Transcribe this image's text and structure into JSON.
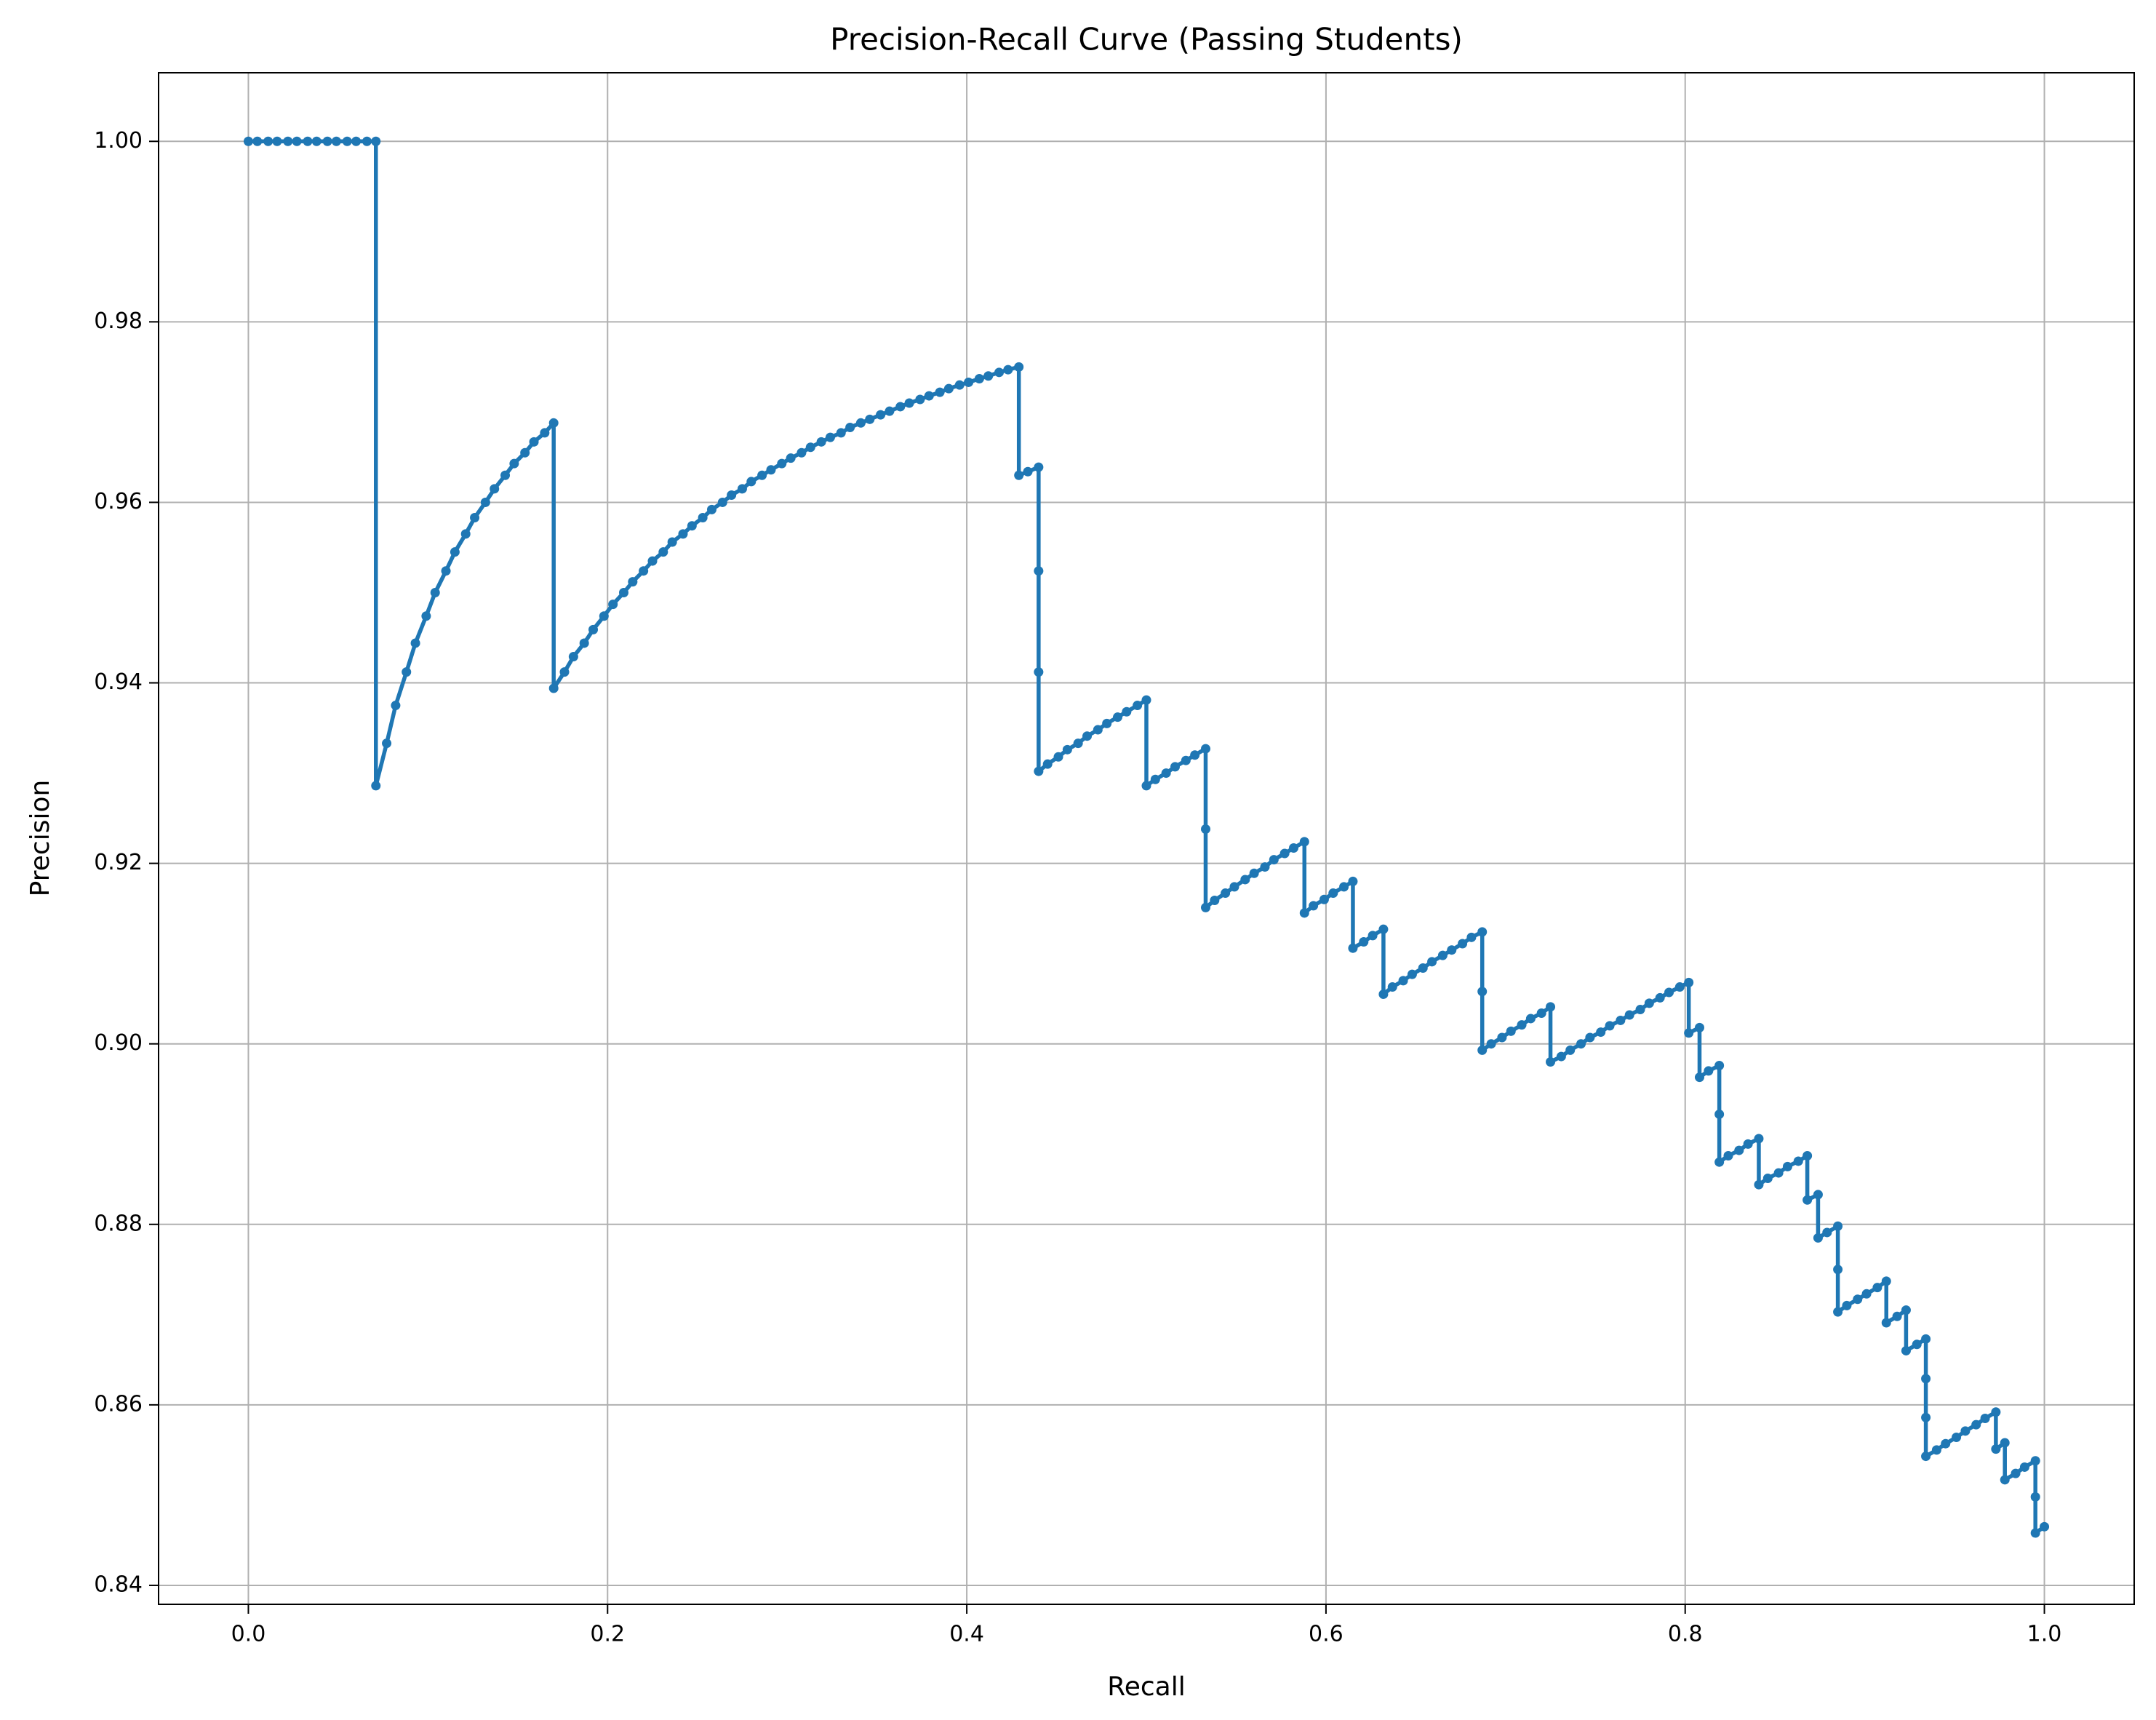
{
  "chart_data": {
    "type": "line",
    "title": "Precision-Recall Curve (Passing Students)",
    "x_label": "Recall",
    "y_label": "Precision",
    "color": "#1f77b4",
    "grid": true,
    "markers": true,
    "xlim": [
      -0.05,
      1.05
    ],
    "ylim": [
      0.8379,
      1.0076
    ],
    "xticks": [
      {
        "value": 0,
        "label": "0.0"
      },
      0.2,
      0.4,
      0.6,
      0.8,
      {
        "value": 1,
        "label": "1.0"
      }
    ],
    "yticks": [
      0.84,
      0.86,
      0.88,
      {
        "value": 0.9,
        "label": "0.90"
      },
      0.92,
      0.94,
      0.96,
      0.98,
      {
        "value": 1,
        "label": "1.00"
      }
    ],
    "x": [
      0,
      0.005,
      0.011,
      0.016,
      0.022,
      0.027,
      0.033,
      0.038,
      0.044,
      0.049,
      0.055,
      0.06,
      0.066,
      0.071,
      0.071,
      0.077,
      0.082,
      0.088,
      0.093,
      0.099,
      0.104,
      0.11,
      0.115,
      0.121,
      0.126,
      0.132,
      0.137,
      0.143,
      0.148,
      0.154,
      0.159,
      0.165,
      0.17,
      0.17,
      0.176,
      0.181,
      0.187,
      0.192,
      0.198,
      0.203,
      0.209,
      0.214,
      0.22,
      0.225,
      0.231,
      0.236,
      0.242,
      0.247,
      0.253,
      0.258,
      0.264,
      0.269,
      0.275,
      0.28,
      0.286,
      0.291,
      0.297,
      0.302,
      0.308,
      0.313,
      0.319,
      0.324,
      0.33,
      0.335,
      0.341,
      0.346,
      0.352,
      0.357,
      0.363,
      0.368,
      0.374,
      0.379,
      0.385,
      0.39,
      0.396,
      0.401,
      0.407,
      0.412,
      0.418,
      0.423,
      0.429,
      0.429,
      0.434,
      0.44,
      0.44,
      0.44,
      0.44,
      0.445,
      0.451,
      0.456,
      0.462,
      0.467,
      0.473,
      0.478,
      0.484,
      0.489,
      0.495,
      0.5,
      0.5,
      0.505,
      0.511,
      0.516,
      0.522,
      0.527,
      0.533,
      0.533,
      0.533,
      0.538,
      0.544,
      0.549,
      0.555,
      0.56,
      0.566,
      0.571,
      0.577,
      0.582,
      0.588,
      0.588,
      0.593,
      0.599,
      0.604,
      0.61,
      0.615,
      0.615,
      0.621,
      0.626,
      0.632,
      0.632,
      0.637,
      0.643,
      0.648,
      0.654,
      0.659,
      0.665,
      0.67,
      0.676,
      0.681,
      0.687,
      0.687,
      0.687,
      0.692,
      0.698,
      0.703,
      0.709,
      0.714,
      0.72,
      0.725,
      0.725,
      0.731,
      0.736,
      0.742,
      0.747,
      0.753,
      0.758,
      0.764,
      0.769,
      0.775,
      0.78,
      0.786,
      0.791,
      0.797,
      0.802,
      0.802,
      0.808,
      0.808,
      0.813,
      0.819,
      0.819,
      0.819,
      0.824,
      0.83,
      0.835,
      0.841,
      0.841,
      0.846,
      0.852,
      0.857,
      0.863,
      0.868,
      0.868,
      0.874,
      0.874,
      0.879,
      0.885,
      0.885,
      0.885,
      0.89,
      0.896,
      0.901,
      0.907,
      0.912,
      0.912,
      0.918,
      0.923,
      0.923,
      0.929,
      0.934,
      0.934,
      0.934,
      0.934,
      0.94,
      0.945,
      0.951,
      0.956,
      0.962,
      0.967,
      0.973,
      0.973,
      0.978,
      0.978,
      0.984,
      0.989,
      0.995,
      0.995,
      0.995,
      1
    ],
    "values": [
      1,
      1,
      1,
      1,
      1,
      1,
      1,
      1,
      1,
      1,
      1,
      1,
      1,
      1,
      0.9286,
      0.9333,
      0.9375,
      0.9412,
      0.9444,
      0.9474,
      0.95,
      0.9524,
      0.9545,
      0.9565,
      0.9583,
      0.96,
      0.9615,
      0.963,
      0.9643,
      0.9655,
      0.9667,
      0.9677,
      0.9688,
      0.9394,
      0.9412,
      0.9429,
      0.9444,
      0.9459,
      0.9474,
      0.9487,
      0.95,
      0.9512,
      0.9524,
      0.9535,
      0.9545,
      0.9556,
      0.9565,
      0.9574,
      0.9583,
      0.9592,
      0.96,
      0.9608,
      0.9615,
      0.9623,
      0.963,
      0.9636,
      0.9643,
      0.9649,
      0.9655,
      0.9661,
      0.9667,
      0.9672,
      0.9677,
      0.9683,
      0.9688,
      0.9692,
      0.9697,
      0.9701,
      0.9706,
      0.971,
      0.9714,
      0.9718,
      0.9722,
      0.9726,
      0.973,
      0.9733,
      0.9737,
      0.974,
      0.9744,
      0.9747,
      0.975,
      0.963,
      0.9634,
      0.9639,
      0.9524,
      0.9412,
      0.9302,
      0.931,
      0.9318,
      0.9326,
      0.9333,
      0.9341,
      0.9348,
      0.9355,
      0.9362,
      0.9368,
      0.9375,
      0.9381,
      0.9286,
      0.9293,
      0.93,
      0.9307,
      0.9314,
      0.932,
      0.9327,
      0.9238,
      0.9151,
      0.9159,
      0.9167,
      0.9174,
      0.9182,
      0.9189,
      0.9196,
      0.9204,
      0.9211,
      0.9217,
      0.9224,
      0.9145,
      0.9153,
      0.916,
      0.9167,
      0.9174,
      0.918,
      0.9106,
      0.9113,
      0.912,
      0.9127,
      0.9055,
      0.9063,
      0.907,
      0.9077,
      0.9084,
      0.9091,
      0.9098,
      0.9104,
      0.9111,
      0.9118,
      0.9124,
      0.9058,
      0.8993,
      0.9,
      0.9007,
      0.9014,
      0.9021,
      0.9028,
      0.9034,
      0.9041,
      0.898,
      0.8986,
      0.8993,
      0.9,
      0.9007,
      0.9013,
      0.902,
      0.9026,
      0.9032,
      0.9038,
      0.9045,
      0.9051,
      0.9057,
      0.9063,
      0.9068,
      0.9012,
      0.9018,
      0.8963,
      0.897,
      0.8976,
      0.8922,
      0.8869,
      0.8876,
      0.8882,
      0.8889,
      0.8895,
      0.8844,
      0.8851,
      0.8857,
      0.8864,
      0.887,
      0.8876,
      0.8827,
      0.8833,
      0.8785,
      0.8791,
      0.8798,
      0.875,
      0.8703,
      0.871,
      0.8717,
      0.8723,
      0.873,
      0.8737,
      0.8691,
      0.8698,
      0.8705,
      0.866,
      0.8667,
      0.8673,
      0.8629,
      0.8586,
      0.8543,
      0.855,
      0.8557,
      0.8564,
      0.8571,
      0.8578,
      0.8585,
      0.8592,
      0.8551,
      0.8558,
      0.8517,
      0.8524,
      0.8531,
      0.8538,
      0.8498,
      0.8458,
      0.8465
    ]
  }
}
